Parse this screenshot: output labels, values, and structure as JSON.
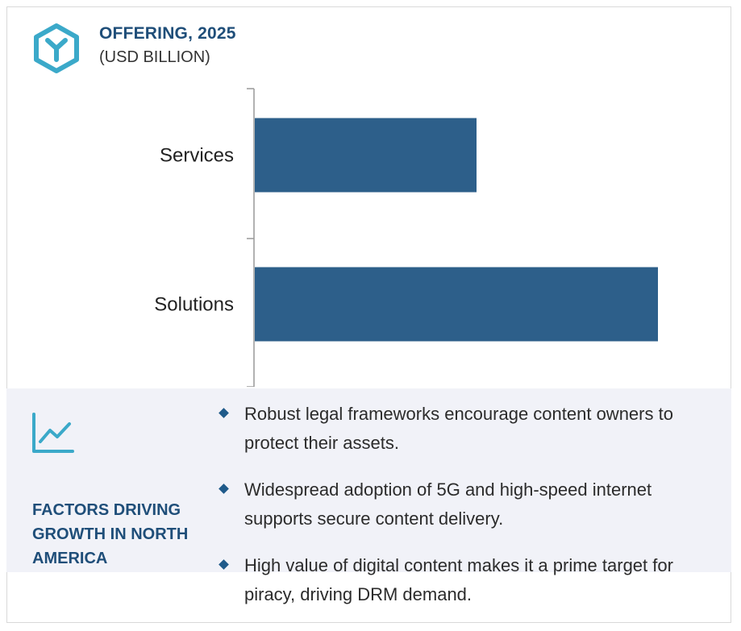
{
  "header": {
    "title": "OFFERING, 2025",
    "subtitle": "(USD BILLION)",
    "icon": "hexagon-y-icon"
  },
  "chart_data": {
    "type": "bar",
    "orientation": "horizontal",
    "categories": [
      "Services",
      "Solutions"
    ],
    "values": [
      0.55,
      1.0
    ],
    "title": "OFFERING, 2025",
    "subtitle": "(USD BILLION)",
    "xlabel": "",
    "ylabel": "",
    "xlim": [
      0,
      1.0
    ],
    "grid": false,
    "legend": "none",
    "bar_color": "#2d5f8a"
  },
  "factors": {
    "icon": "line-chart-icon",
    "label": "FACTORS DRIVING GROWTH IN NORTH AMERICA",
    "items": [
      "Robust legal frameworks encourage content owners to protect their assets.",
      "Widespread adoption of 5G and high-speed internet supports secure content delivery.",
      "High value of digital content makes it a prime target for piracy, driving DRM demand."
    ]
  },
  "colors": {
    "accent": "#1f4e79",
    "icon_teal": "#3ba9c9",
    "panel_bg": "#f1f2f8"
  }
}
